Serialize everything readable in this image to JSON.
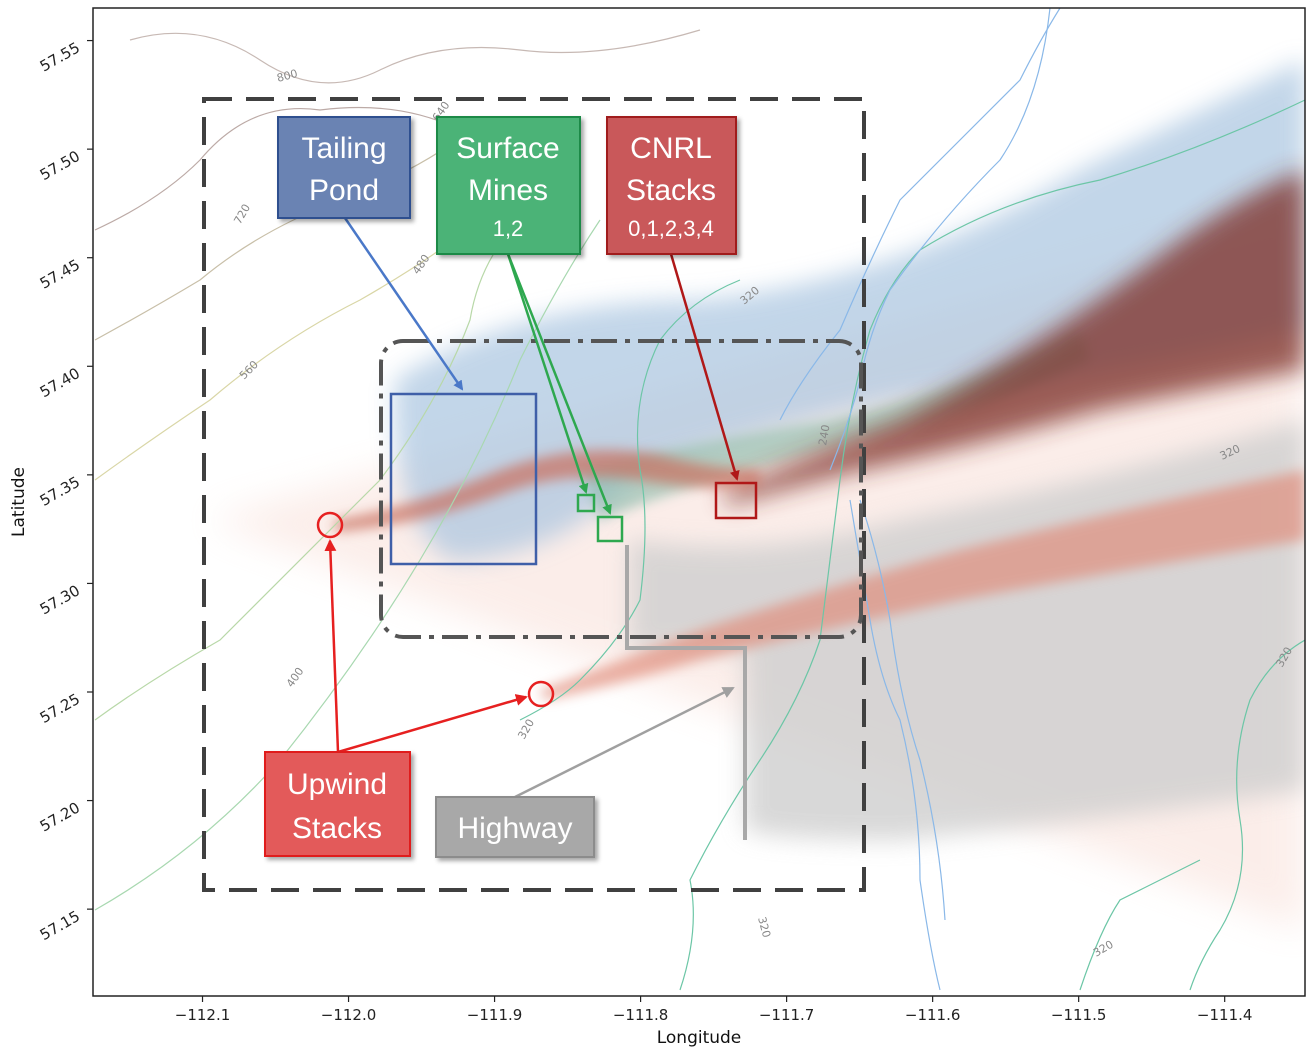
{
  "chart_data": {
    "type": "map",
    "xlabel": "Longitude",
    "ylabel": "Latitude",
    "xlim": [
      -112.175,
      -111.345
    ],
    "ylim": [
      57.11,
      57.565
    ],
    "xticks": [
      {
        "value": -112.1,
        "label": "−112.1"
      },
      {
        "value": -112.0,
        "label": "−112.0"
      },
      {
        "value": -111.9,
        "label": "−111.9"
      },
      {
        "value": -111.8,
        "label": "−111.8"
      },
      {
        "value": -111.7,
        "label": "−111.7"
      },
      {
        "value": -111.6,
        "label": "−111.6"
      },
      {
        "value": -111.5,
        "label": "−111.5"
      },
      {
        "value": -111.4,
        "label": "−111.4"
      }
    ],
    "yticks": [
      {
        "value": 57.15,
        "label": "57.15"
      },
      {
        "value": 57.2,
        "label": "57.20"
      },
      {
        "value": 57.25,
        "label": "57.25"
      },
      {
        "value": 57.3,
        "label": "57.30"
      },
      {
        "value": 57.35,
        "label": "57.35"
      },
      {
        "value": 57.4,
        "label": "57.40"
      },
      {
        "value": 57.45,
        "label": "57.45"
      },
      {
        "value": 57.5,
        "label": "57.50"
      },
      {
        "value": 57.55,
        "label": "57.55"
      }
    ],
    "contour_labels": [
      "800",
      "720",
      "640",
      "560",
      "480",
      "400",
      "320",
      "240",
      "320",
      "320",
      "320",
      "320",
      "320"
    ],
    "plume_colors": {
      "tailing_pond": "#9dbad6",
      "surface_mines": "#7ab8a0",
      "cnrl_stacks": "#7a2a22",
      "upwind_stacks": "#e3806a",
      "highway": "#c8c8c8"
    }
  },
  "annotations": {
    "tailing_pond": {
      "line1": "Tailing",
      "line2": "Pond",
      "color": "#4a6fa5"
    },
    "surface_mines": {
      "line1": "Surface",
      "line2": "Mines",
      "sub": "1,2",
      "color": "#2e9e5b"
    },
    "cnrl_stacks": {
      "line1": "CNRL",
      "line2": "Stacks",
      "sub": "0,1,2,3,4",
      "color": "#c0302e"
    },
    "upwind_stacks": {
      "line1": "Upwind",
      "line2": "Stacks",
      "color": "#e03030"
    },
    "highway": {
      "line1": "Highway",
      "color": "#9a9a9a"
    }
  }
}
